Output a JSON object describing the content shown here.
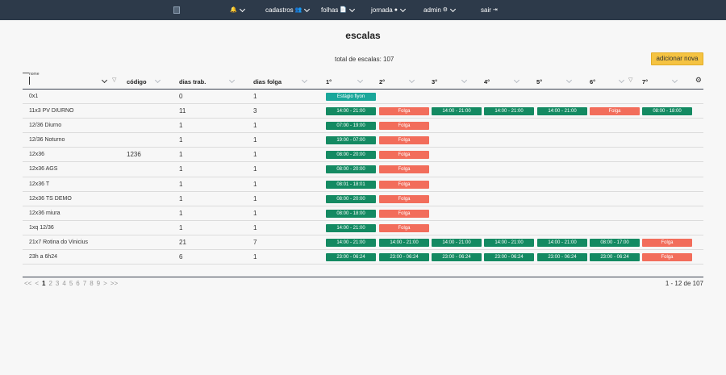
{
  "nav": {
    "items": [
      {
        "label": "",
        "icon": "bell-icon",
        "glyph": "🔔"
      },
      {
        "label": "cadastros",
        "icon": "users-icon",
        "glyph": "👥"
      },
      {
        "label": "folhas",
        "icon": "file-icon",
        "glyph": "📄"
      },
      {
        "label": "jornada",
        "icon": "clock-icon",
        "glyph": "●"
      },
      {
        "label": "admin",
        "icon": "gear-icon",
        "glyph": "⚙"
      },
      {
        "label": "sair",
        "icon": "logout-icon",
        "glyph": "⇥"
      }
    ]
  },
  "page": {
    "title": "escalas",
    "total": "total de escalas: 107",
    "add_label": "adicionar nova"
  },
  "table": {
    "nome_label": "nome",
    "headers": {
      "codigo": "código",
      "dias_trab": "dias trab.",
      "dias_folga": "dias folga",
      "d1": "1°",
      "d2": "2°",
      "d3": "3°",
      "d4": "4°",
      "d5": "5°",
      "d6": "6°",
      "d7": "7°"
    },
    "rows": [
      {
        "nome": "0x1",
        "codigo": "",
        "trab": "0",
        "folga": "1",
        "days": [
          {
            "t": "Estágio flyon",
            "c": "teal"
          }
        ]
      },
      {
        "nome": "11x3 PV DIURNO",
        "codigo": "",
        "trab": "11",
        "folga": "3",
        "days": [
          {
            "t": "14:00 - 21:00",
            "c": "green"
          },
          {
            "t": "Folga",
            "c": "red"
          },
          {
            "t": "14:00 - 21:00",
            "c": "green"
          },
          {
            "t": "14:00 - 21:00",
            "c": "green"
          },
          {
            "t": "14:00 - 21:00",
            "c": "green"
          },
          {
            "t": "Folga",
            "c": "red"
          },
          {
            "t": "08:00 - 18:00",
            "c": "green"
          }
        ]
      },
      {
        "nome": "12/36 Diurno",
        "codigo": "",
        "trab": "1",
        "folga": "1",
        "days": [
          {
            "t": "07:00 - 19:00",
            "c": "green"
          },
          {
            "t": "Folga",
            "c": "red"
          }
        ]
      },
      {
        "nome": "12/36 Noturno",
        "codigo": "",
        "trab": "1",
        "folga": "1",
        "days": [
          {
            "t": "19:00 - 07:00",
            "c": "green"
          },
          {
            "t": "Folga",
            "c": "red"
          }
        ]
      },
      {
        "nome": "12x36",
        "codigo": "1236",
        "trab": "1",
        "folga": "1",
        "days": [
          {
            "t": "08:00 - 20:00",
            "c": "green"
          },
          {
            "t": "Folga",
            "c": "red"
          }
        ]
      },
      {
        "nome": "12x36 AGS",
        "codigo": "",
        "trab": "1",
        "folga": "1",
        "days": [
          {
            "t": "08:00 - 20:00",
            "c": "green"
          },
          {
            "t": "Folga",
            "c": "red"
          }
        ]
      },
      {
        "nome": "12x36 T",
        "codigo": "",
        "trab": "1",
        "folga": "1",
        "days": [
          {
            "t": "08:01 - 18:01",
            "c": "green"
          },
          {
            "t": "Folga",
            "c": "red"
          }
        ]
      },
      {
        "nome": "12x36 TS DEMO",
        "codigo": "",
        "trab": "1",
        "folga": "1",
        "days": [
          {
            "t": "08:00 - 20:00",
            "c": "green"
          },
          {
            "t": "Folga",
            "c": "red"
          }
        ]
      },
      {
        "nome": "12x36 miura",
        "codigo": "",
        "trab": "1",
        "folga": "1",
        "days": [
          {
            "t": "08:00 - 18:00",
            "c": "green"
          },
          {
            "t": "Folga",
            "c": "red"
          }
        ]
      },
      {
        "nome": "1xq 12/36",
        "codigo": "",
        "trab": "1",
        "folga": "1",
        "days": [
          {
            "t": "14:00 - 21:00",
            "c": "green"
          },
          {
            "t": "Folga",
            "c": "red"
          }
        ]
      },
      {
        "nome": "21x7 Rotina do Vinicius",
        "codigo": "",
        "trab": "21",
        "folga": "7",
        "days": [
          {
            "t": "14:00 - 21:00",
            "c": "green"
          },
          {
            "t": "14:00 - 21:00",
            "c": "green"
          },
          {
            "t": "14:00 - 21:00",
            "c": "green"
          },
          {
            "t": "14:00 - 21:00",
            "c": "green"
          },
          {
            "t": "14:00 - 21:00",
            "c": "green"
          },
          {
            "t": "08:00 - 17:00",
            "c": "green"
          },
          {
            "t": "Folga",
            "c": "red"
          }
        ]
      },
      {
        "nome": "23h a 6h24",
        "codigo": "",
        "trab": "6",
        "folga": "1",
        "days": [
          {
            "t": "23:00 - 06:24",
            "c": "green"
          },
          {
            "t": "23:00 - 06:24",
            "c": "green"
          },
          {
            "t": "23:00 - 06:24",
            "c": "green"
          },
          {
            "t": "23:00 - 06:24",
            "c": "green"
          },
          {
            "t": "23:00 - 06:24",
            "c": "green"
          },
          {
            "t": "23:00 - 06:24",
            "c": "green"
          },
          {
            "t": "Folga",
            "c": "red"
          }
        ]
      }
    ]
  },
  "pagination": {
    "first": "<<",
    "prev": "<",
    "pages": [
      "1",
      "2",
      "3",
      "4",
      "5",
      "6",
      "7",
      "8",
      "9"
    ],
    "current": "1",
    "next": ">",
    "last": ">>",
    "count": "1 - 12 de 107"
  }
}
